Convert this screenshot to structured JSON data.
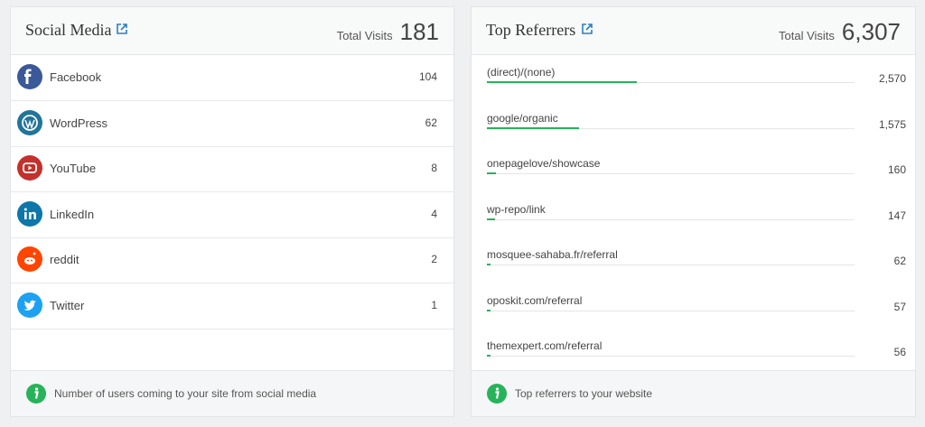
{
  "social": {
    "title": "Social Media",
    "total_label": "Total Visits",
    "total": 181,
    "rows": [
      {
        "name": "Facebook",
        "visits": 104
      },
      {
        "name": "WordPress",
        "visits": 62
      },
      {
        "name": "YouTube",
        "visits": 8
      },
      {
        "name": "LinkedIn",
        "visits": 4
      },
      {
        "name": "reddit",
        "visits": 2
      },
      {
        "name": "Twitter",
        "visits": 1
      }
    ],
    "footer": "Number of users coming to your site from social media"
  },
  "referrers": {
    "title": "Top Referrers",
    "total_label": "Total Visits",
    "total": {
      "value": 6307,
      "label": "6,307"
    },
    "rows": [
      {
        "name": "(direct)/(none)",
        "visits": {
          "value": 2570,
          "label": "2,570"
        }
      },
      {
        "name": "google/organic",
        "visits": {
          "value": 1575,
          "label": "1,575"
        }
      },
      {
        "name": "onepagelove/showcase",
        "visits": 160
      },
      {
        "name": "wp-repo/link",
        "visits": 147
      },
      {
        "name": "mosquee-sahaba.fr/referral",
        "visits": 62
      },
      {
        "name": "oposkit.com/referral",
        "visits": 57
      },
      {
        "name": "themexpert.com/referral",
        "visits": 56
      }
    ],
    "footer": "Top referrers to your website"
  }
}
